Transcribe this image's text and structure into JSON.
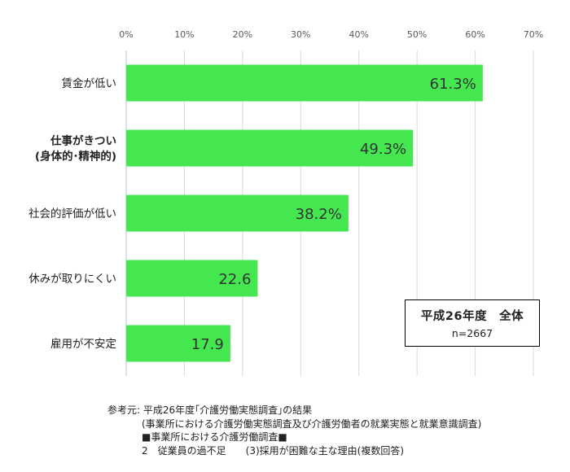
{
  "chart_data": {
    "type": "bar",
    "orientation": "horizontal",
    "xlim": [
      0,
      70
    ],
    "x_ticks": [
      "0%",
      "10%",
      "20%",
      "30%",
      "40%",
      "50%",
      "60%",
      "70%"
    ],
    "grid": "vertical",
    "bar_color": "#44E74F",
    "categories": [
      {
        "lines": [
          "賃金が低い"
        ],
        "value": 61.3,
        "label": "61.3%"
      },
      {
        "lines": [
          "仕事がきつい",
          "(身体的･精神的)"
        ],
        "value": 49.3,
        "label": "49.3%"
      },
      {
        "lines": [
          "社会的評価が低い"
        ],
        "value": 38.2,
        "label": "38.2%"
      },
      {
        "lines": [
          "休みが取りにくい"
        ],
        "value": 22.6,
        "label": "22.6"
      },
      {
        "lines": [
          "雇用が不安定"
        ],
        "value": 17.9,
        "label": "17.9"
      }
    ]
  },
  "info_box": {
    "title": "平成26年度　全体",
    "n": "n=2667"
  },
  "notes": {
    "line1": "参考元: 平成26年度｢介護労働実態調査｣の結果",
    "line2": "(事業所における介護労働実態調査及び介護労働者の就業実態と就業意識調査)",
    "line3": "■事業所における介護労働調査■",
    "line4": "2　従業員の過不足　　(3)採用が困難な主な理由(複数回答)"
  }
}
